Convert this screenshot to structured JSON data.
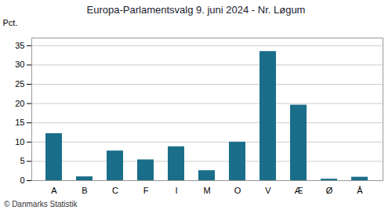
{
  "chart_data": {
    "type": "bar",
    "title": "Europa-Parlamentsvalg 9. juni 2024 - Nr. Løgum",
    "caption": "© Danmarks Statistik",
    "ylabel": "Pct.",
    "categories": [
      "A",
      "B",
      "C",
      "F",
      "I",
      "M",
      "O",
      "V",
      "Æ",
      "Ø",
      "Å"
    ],
    "values": [
      12.2,
      1.0,
      7.7,
      5.4,
      8.8,
      2.6,
      10.0,
      33.5,
      19.6,
      0.4,
      0.9
    ],
    "color": "#1a6e8a",
    "ylim": [
      0,
      37
    ],
    "yticks": [
      0,
      5,
      10,
      15,
      20,
      25,
      30,
      35
    ],
    "grid": true
  }
}
